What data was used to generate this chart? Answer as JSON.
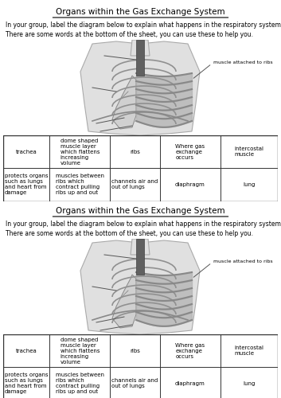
{
  "title": "Organs within the Gas Exchange System",
  "title_underline": true,
  "intro_line1": "In your group, label the diagram below to explain what happens in the respiratory system.",
  "intro_line2": "There are some words at the bottom of the sheet, you can use these to help you.",
  "muscle_label": "muscle attached to ribs",
  "table_row1": [
    "trachea",
    "dome shaped\nmuscle layer\nwhich flattens\nincreasing\nvolume",
    "ribs",
    "Where gas\nexchange\noccurs",
    "intercostal\nmuscle"
  ],
  "table_row2": [
    "protects organs\nsuch as lungs\nand heart from\ndamage",
    "muscles between\nribs which\ncontract pulling\nribs up and out",
    "channels air and\nout of lungs",
    "diaphragm",
    "lung"
  ],
  "bg_color": "#ffffff",
  "text_color": "#000000",
  "line_color": "#555555",
  "body_fill": "#e8e8e8",
  "rib_fill": "#c0c0c0",
  "trachea_fill": "#808080",
  "lung_fill": "#d5d5d5"
}
